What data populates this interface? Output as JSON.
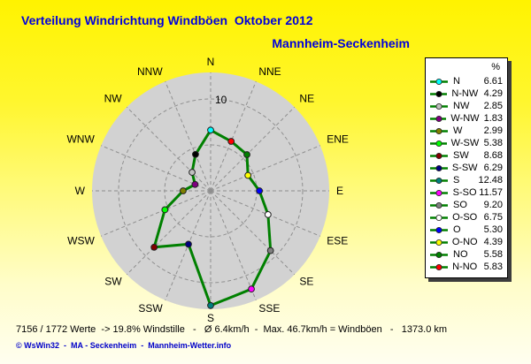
{
  "title": "Verteilung Windrichtung Windböen  Oktober 2012",
  "subtitle": "Mannheim-Seckenheim",
  "chart_data": {
    "type": "radar",
    "title": "Verteilung Windrichtung Windböen  Oktober 2012",
    "subtitle": "Mannheim-Seckenheim",
    "unit": "%",
    "categories": [
      "N",
      "NNE",
      "NE",
      "ENE",
      "E",
      "ESE",
      "SE",
      "SSE",
      "S",
      "SSW",
      "SW",
      "WSW",
      "W",
      "WNW",
      "NW",
      "NNW"
    ],
    "values": [
      6.61,
      5.83,
      5.58,
      4.39,
      5.3,
      6.75,
      9.2,
      11.57,
      12.48,
      6.29,
      8.68,
      5.38,
      2.99,
      1.83,
      2.85,
      4.29
    ],
    "marker_colors": [
      "#00ffff",
      "#ff0000",
      "#008000",
      "#ffff00",
      "#0000ff",
      "#ffffff",
      "#808080",
      "#ff00ff",
      "#008080",
      "#000080",
      "#800000",
      "#00ff00",
      "#808000",
      "#800080",
      "#c0c0c0",
      "#000000"
    ],
    "line_color": "#008000",
    "rings": [
      5,
      10
    ],
    "ring_label": "10",
    "rmax": 12.9,
    "grid_color": "#8f8f8f",
    "disc_color": "#d2d2d2",
    "legend_position": "right"
  },
  "legend": {
    "header": "%",
    "items": [
      {
        "label": "N",
        "value": "6.61",
        "color": "#00ffff"
      },
      {
        "label": "N-NW",
        "value": "4.29",
        "color": "#000000"
      },
      {
        "label": "NW",
        "value": "2.85",
        "color": "#c0c0c0"
      },
      {
        "label": "W-NW",
        "value": "1.83",
        "color": "#800080"
      },
      {
        "label": "W",
        "value": "2.99",
        "color": "#808000"
      },
      {
        "label": "W-SW",
        "value": "5.38",
        "color": "#00ff00"
      },
      {
        "label": "SW",
        "value": "8.68",
        "color": "#800000"
      },
      {
        "label": "S-SW",
        "value": "6.29",
        "color": "#000080"
      },
      {
        "label": "S",
        "value": "12.48",
        "color": "#008080"
      },
      {
        "label": "S-SO",
        "value": "11.57",
        "color": "#ff00ff"
      },
      {
        "label": "SO",
        "value": "9.20",
        "color": "#808080"
      },
      {
        "label": "O-SO",
        "value": "6.75",
        "color": "#ffffff"
      },
      {
        "label": "O",
        "value": "5.30",
        "color": "#0000ff"
      },
      {
        "label": "O-NO",
        "value": "4.39",
        "color": "#ffff00"
      },
      {
        "label": "NO",
        "value": "5.58",
        "color": "#008000"
      },
      {
        "label": "N-NO",
        "value": "5.83",
        "color": "#ff0000"
      }
    ]
  },
  "footer": {
    "stats": "7156 / 1772 Werte  -> 19.8% Windstille   -   Ø 6.4km/h  -  Max. 46.7km/h = Windböen   -   1373.0 km",
    "copyright": "© WsWin32  -  MA - Seckenheim  -  Mannheim-Wetter.info"
  }
}
